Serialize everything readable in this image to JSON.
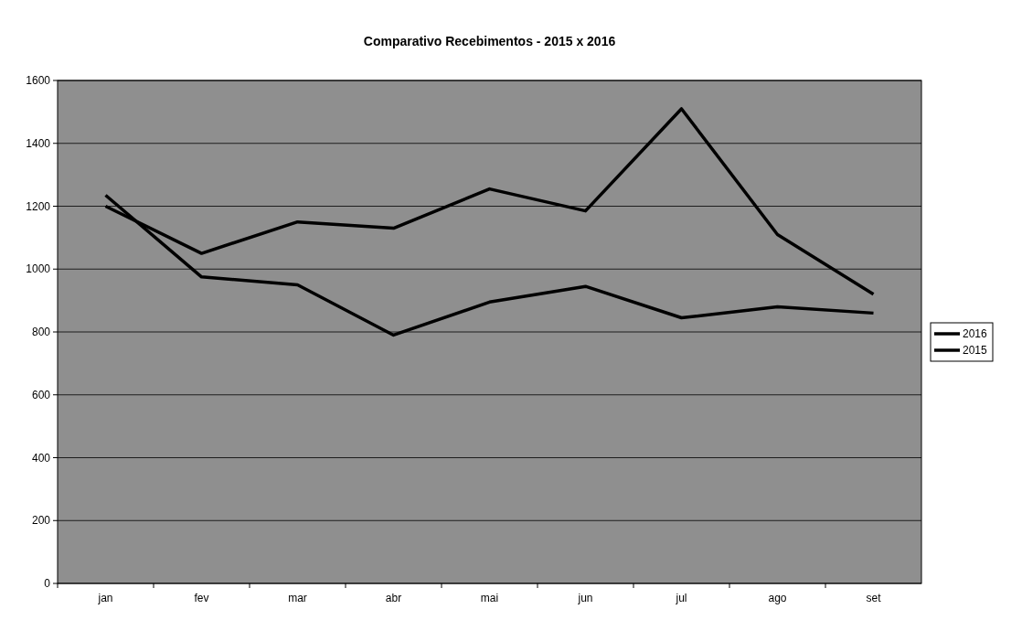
{
  "chart_data": {
    "type": "line",
    "title": "Comparativo Recebimentos - 2015 x 2016",
    "categories": [
      "jan",
      "fev",
      "mar",
      "abr",
      "mai",
      "jun",
      "jul",
      "ago",
      "set"
    ],
    "series": [
      {
        "name": "2016",
        "color": "#000000",
        "values": [
          1200,
          1050,
          1150,
          1130,
          1255,
          1185,
          1510,
          1110,
          920
        ]
      },
      {
        "name": "2015",
        "color": "#000000",
        "values": [
          1235,
          975,
          950,
          790,
          895,
          945,
          845,
          880,
          860
        ]
      }
    ],
    "ylim": [
      0,
      1600
    ],
    "yticks": [
      0,
      200,
      400,
      600,
      800,
      1000,
      1200,
      1400,
      1600
    ],
    "grid": "y",
    "legend": "right",
    "marker": "none",
    "line_style": "solid"
  }
}
